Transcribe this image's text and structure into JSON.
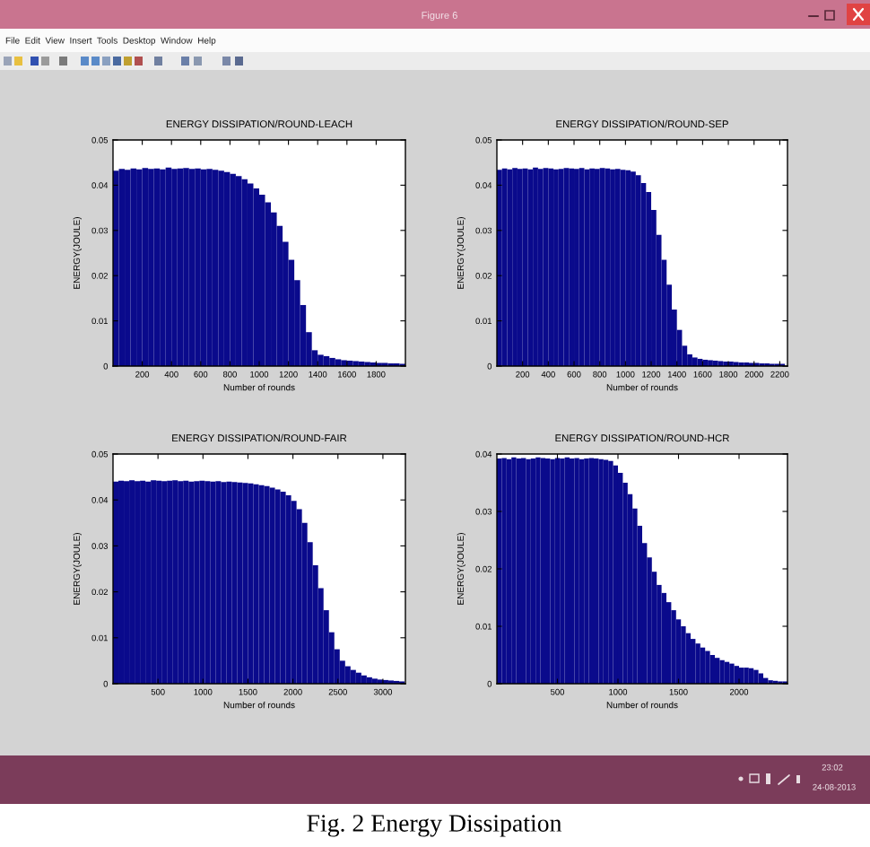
{
  "chart_data": [
    {
      "type": "bar",
      "title": "ENERGY DISSIPATION/ROUND-LEACH",
      "xlabel": "Number of rounds",
      "ylabel": "ENERGY(JOULE)",
      "color": "#0a0a8c",
      "x": [
        20,
        60,
        100,
        140,
        180,
        220,
        260,
        300,
        340,
        380,
        420,
        460,
        500,
        540,
        580,
        620,
        660,
        700,
        740,
        780,
        820,
        860,
        900,
        940,
        980,
        1020,
        1060,
        1100,
        1140,
        1180,
        1220,
        1260,
        1300,
        1340,
        1380,
        1420,
        1460,
        1500,
        1540,
        1580,
        1620,
        1660,
        1700,
        1740,
        1780,
        1820,
        1860,
        1900,
        1940,
        1980
      ],
      "values": [
        0.0432,
        0.0436,
        0.0434,
        0.0437,
        0.0435,
        0.0438,
        0.0436,
        0.0437,
        0.0435,
        0.0439,
        0.0436,
        0.0437,
        0.0438,
        0.0436,
        0.0437,
        0.0435,
        0.0436,
        0.0434,
        0.0432,
        0.0429,
        0.0425,
        0.042,
        0.0413,
        0.0404,
        0.0393,
        0.0379,
        0.0362,
        0.034,
        0.031,
        0.0275,
        0.0235,
        0.019,
        0.0135,
        0.0075,
        0.0035,
        0.0025,
        0.0022,
        0.0018,
        0.0015,
        0.0013,
        0.0012,
        0.0011,
        0.001,
        0.0009,
        0.0008,
        0.0007,
        0.0007,
        0.0006,
        0.0006,
        0.0005
      ],
      "xlim": [
        0,
        2000
      ],
      "xticks": [
        200,
        400,
        600,
        800,
        1000,
        1200,
        1400,
        1600,
        1800
      ],
      "ylim": [
        0,
        0.05
      ],
      "yticks": [
        0,
        0.01,
        0.02,
        0.03,
        0.04,
        0.05
      ],
      "annotations": [
        "Figure 6",
        "File  Edit  View  Insert  Tools  Desktop  Window  Help",
        "23:02",
        "24-08-2013",
        "Fig. 2 Energy Dissipation"
      ]
    },
    {
      "type": "bar",
      "title": "ENERGY DISSIPATION/ROUND-SEP",
      "xlabel": "Number of rounds",
      "ylabel": "ENERGY(JOULE)",
      "color": "#0a0a8c",
      "x": [
        20,
        60,
        100,
        140,
        180,
        220,
        260,
        300,
        340,
        380,
        420,
        460,
        500,
        540,
        580,
        620,
        660,
        700,
        740,
        780,
        820,
        860,
        900,
        940,
        980,
        1020,
        1060,
        1100,
        1140,
        1180,
        1220,
        1260,
        1300,
        1340,
        1380,
        1420,
        1460,
        1500,
        1540,
        1580,
        1620,
        1660,
        1700,
        1740,
        1780,
        1820,
        1860,
        1900,
        1940,
        1980,
        2020,
        2060,
        2100,
        2140,
        2180,
        2220
      ],
      "values": [
        0.0434,
        0.0437,
        0.0435,
        0.0438,
        0.0436,
        0.0437,
        0.0435,
        0.0439,
        0.0436,
        0.0438,
        0.0437,
        0.0435,
        0.0436,
        0.0438,
        0.0437,
        0.0436,
        0.0438,
        0.0435,
        0.0437,
        0.0436,
        0.0438,
        0.0437,
        0.0435,
        0.0436,
        0.0434,
        0.0433,
        0.043,
        0.0422,
        0.0405,
        0.0385,
        0.0345,
        0.029,
        0.0235,
        0.018,
        0.0125,
        0.008,
        0.0045,
        0.0026,
        0.0019,
        0.0016,
        0.0014,
        0.0013,
        0.0012,
        0.0011,
        0.001,
        0.001,
        0.0009,
        0.0008,
        0.0008,
        0.0007,
        0.0007,
        0.0006,
        0.0006,
        0.0005,
        0.0005,
        0.0005
      ],
      "xlim": [
        0,
        2260
      ],
      "xticks": [
        200,
        400,
        600,
        800,
        1000,
        1200,
        1400,
        1600,
        1800,
        2000,
        2200
      ],
      "ylim": [
        0,
        0.05
      ],
      "yticks": [
        0,
        0.01,
        0.02,
        0.03,
        0.04,
        0.05
      ]
    },
    {
      "type": "bar",
      "title": "ENERGY DISSIPATION/ROUND-FAIR",
      "xlabel": "Number of rounds",
      "ylabel": "ENERGY(JOULE)",
      "color": "#0a0a8c",
      "x": [
        30,
        90,
        150,
        210,
        270,
        330,
        390,
        450,
        510,
        570,
        630,
        690,
        750,
        810,
        870,
        930,
        990,
        1050,
        1110,
        1170,
        1230,
        1290,
        1350,
        1410,
        1470,
        1530,
        1590,
        1650,
        1710,
        1770,
        1830,
        1890,
        1950,
        2010,
        2070,
        2130,
        2190,
        2250,
        2310,
        2370,
        2430,
        2490,
        2550,
        2610,
        2670,
        2730,
        2790,
        2850,
        2910,
        2970,
        3030,
        3090,
        3150,
        3210
      ],
      "values": [
        0.044,
        0.0442,
        0.0441,
        0.0443,
        0.0441,
        0.0442,
        0.044,
        0.0443,
        0.0442,
        0.0441,
        0.0442,
        0.0443,
        0.0441,
        0.0442,
        0.044,
        0.0441,
        0.0442,
        0.0441,
        0.044,
        0.0441,
        0.0439,
        0.044,
        0.0439,
        0.0438,
        0.0437,
        0.0436,
        0.0434,
        0.0432,
        0.043,
        0.0427,
        0.0423,
        0.0418,
        0.041,
        0.0398,
        0.038,
        0.035,
        0.0308,
        0.0258,
        0.0208,
        0.016,
        0.0112,
        0.0075,
        0.005,
        0.0038,
        0.003,
        0.0024,
        0.0018,
        0.0014,
        0.0011,
        0.0009,
        0.0008,
        0.0007,
        0.0006,
        0.0005
      ],
      "xlim": [
        0,
        3250
      ],
      "xticks": [
        500,
        1000,
        1500,
        2000,
        2500,
        3000
      ],
      "ylim": [
        0,
        0.05
      ],
      "yticks": [
        0,
        0.01,
        0.02,
        0.03,
        0.04,
        0.05
      ]
    },
    {
      "type": "bar",
      "title": "ENERGY DISSIPATION/ROUND-HCR",
      "xlabel": "Number of rounds",
      "ylabel": "ENERGY(JOULE)",
      "color": "#0a0a8c",
      "x": [
        20,
        60,
        100,
        140,
        180,
        220,
        260,
        300,
        340,
        380,
        420,
        460,
        500,
        540,
        580,
        620,
        660,
        700,
        740,
        780,
        820,
        860,
        900,
        940,
        980,
        1020,
        1060,
        1100,
        1140,
        1180,
        1220,
        1260,
        1300,
        1340,
        1380,
        1420,
        1460,
        1500,
        1540,
        1580,
        1620,
        1660,
        1700,
        1740,
        1780,
        1820,
        1860,
        1900,
        1940,
        1980,
        2020,
        2060,
        2100,
        2140,
        2180,
        2220,
        2260,
        2300,
        2340,
        2380
      ],
      "values": [
        0.0392,
        0.0393,
        0.0391,
        0.0394,
        0.0392,
        0.0393,
        0.0391,
        0.0392,
        0.0394,
        0.0393,
        0.0392,
        0.0391,
        0.0393,
        0.0392,
        0.0394,
        0.0392,
        0.0393,
        0.0391,
        0.0392,
        0.0393,
        0.0392,
        0.0391,
        0.039,
        0.0388,
        0.038,
        0.0367,
        0.035,
        0.033,
        0.0305,
        0.0275,
        0.0245,
        0.022,
        0.0195,
        0.0172,
        0.0158,
        0.0142,
        0.0128,
        0.0112,
        0.01,
        0.0088,
        0.0078,
        0.007,
        0.0063,
        0.0057,
        0.005,
        0.0045,
        0.0041,
        0.0038,
        0.0035,
        0.0031,
        0.0028,
        0.0028,
        0.0027,
        0.0024,
        0.0018,
        0.001,
        0.0006,
        0.0005,
        0.0004,
        0.0004
      ],
      "xlim": [
        0,
        2400
      ],
      "xticks": [
        500,
        1000,
        1500,
        2000
      ],
      "ylim": [
        0,
        0.04
      ],
      "yticks": [
        0,
        0.01,
        0.02,
        0.03,
        0.04
      ]
    }
  ]
}
